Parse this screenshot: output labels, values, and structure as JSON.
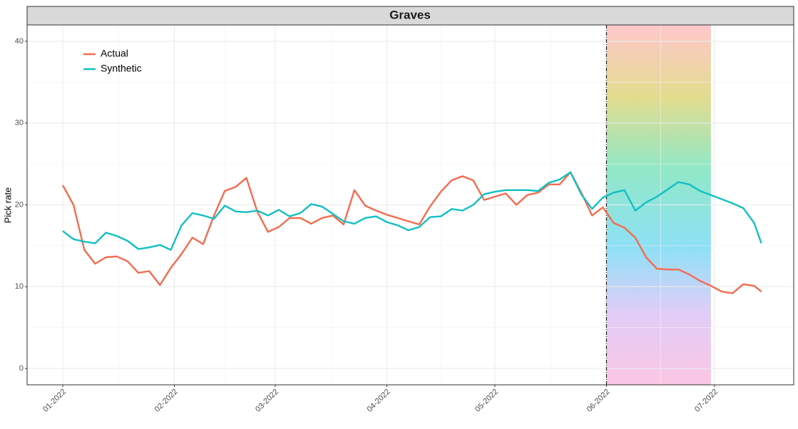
{
  "chart_data": {
    "type": "line",
    "title": "Graves",
    "y_label": "Pick rate",
    "x": [
      0,
      3,
      6,
      9,
      12,
      15,
      18,
      21,
      24,
      27,
      30,
      33,
      36,
      39,
      42,
      45,
      48,
      51,
      54,
      57,
      60,
      63,
      66,
      69,
      72,
      75,
      78,
      81,
      84,
      87,
      90,
      93,
      96,
      99,
      102,
      105,
      108,
      111,
      114,
      117,
      120,
      123,
      126,
      129,
      132,
      135,
      138,
      141,
      144,
      147,
      150,
      153,
      156,
      159,
      162,
      165,
      168,
      171,
      174,
      177,
      180,
      183,
      186,
      189,
      192,
      194
    ],
    "series": [
      {
        "name": "Actual",
        "color": "#f46b4f",
        "values": [
          22.4,
          20,
          14.5,
          12.8,
          13.6,
          13.7,
          13.1,
          11.7,
          11.9,
          10.2,
          12.3,
          14,
          16,
          15.2,
          18.7,
          21.7,
          22.2,
          23.3,
          19.2,
          16.7,
          17.3,
          18.4,
          18.4,
          17.7,
          18.4,
          18.7,
          17.6,
          21.8,
          19.9,
          19.3,
          18.8,
          18.4,
          18,
          17.6,
          19.8,
          21.6,
          23,
          23.5,
          23,
          20.6,
          21,
          21.4,
          20,
          21.2,
          21.5,
          22.5,
          22.5,
          24,
          21.5,
          18.7,
          19.7,
          17.8,
          17.2,
          16,
          13.6,
          12.2,
          12.1,
          12.1,
          11.5,
          10.7,
          10.1,
          9.4,
          9.2,
          10.3,
          10.1,
          9.4
        ]
      },
      {
        "name": "Synthetic",
        "color": "#12bfc2",
        "values": [
          16.8,
          15.8,
          15.5,
          15.3,
          16.6,
          16.2,
          15.6,
          14.6,
          14.8,
          15.1,
          14.5,
          17.5,
          19,
          18.7,
          18.3,
          19.9,
          19.2,
          19.1,
          19.3,
          18.7,
          19.4,
          18.6,
          19,
          20.1,
          19.8,
          18.9,
          18,
          17.7,
          18.4,
          18.6,
          17.9,
          17.5,
          16.9,
          17.3,
          18.5,
          18.6,
          19.5,
          19.3,
          20,
          21.3,
          21.6,
          21.8,
          21.8,
          21.8,
          21.7,
          22.7,
          23.1,
          24,
          21.3,
          19.5,
          20.9,
          21.5,
          21.8,
          19.3,
          20.3,
          21,
          21.9,
          22.8,
          22.5,
          21.7,
          21.2,
          20.7,
          20.2,
          19.6,
          17.8,
          15.3
        ]
      }
    ],
    "xlim": [
      -9.9,
      203
    ],
    "ylim": [
      -2,
      42
    ],
    "xticks": [
      {
        "value": 0,
        "label": "01-2022"
      },
      {
        "value": 31,
        "label": "02-2022"
      },
      {
        "value": 59,
        "label": "03-2022"
      },
      {
        "value": 90,
        "label": "04-2022"
      },
      {
        "value": 120,
        "label": "05-2022"
      },
      {
        "value": 151,
        "label": "06-2022"
      },
      {
        "value": 181,
        "label": "07-2022"
      }
    ],
    "yticks": [
      0,
      10,
      20,
      30,
      40
    ],
    "event_x": 151,
    "shaded_xlim": [
      151,
      180
    ],
    "grid": true,
    "legend": "top-left"
  }
}
